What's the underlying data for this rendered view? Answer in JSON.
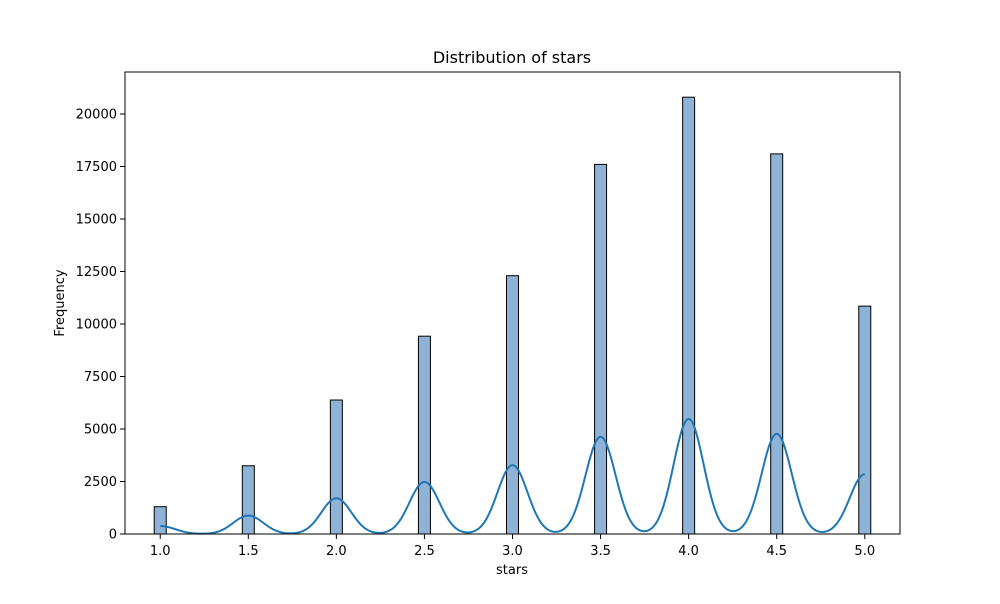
{
  "chart_data": {
    "type": "bar",
    "title": "Distribution of stars",
    "xlabel": "stars",
    "ylabel": "Frequency",
    "xlim": [
      0.8,
      5.2
    ],
    "ylim": [
      0,
      22000
    ],
    "x_ticks": [
      1.0,
      1.5,
      2.0,
      2.5,
      3.0,
      3.5,
      4.0,
      4.5,
      5.0
    ],
    "x_tick_labels": [
      "1.0",
      "1.5",
      "2.0",
      "2.5",
      "3.0",
      "3.5",
      "4.0",
      "4.5",
      "5.0"
    ],
    "y_ticks": [
      0,
      2500,
      5000,
      7500,
      10000,
      12500,
      15000,
      17500,
      20000
    ],
    "y_tick_labels": [
      "0",
      "2500",
      "5000",
      "7500",
      "10000",
      "12500",
      "15000",
      "17500",
      "20000"
    ],
    "grid": false,
    "legend": "none",
    "bar_color": "#8fb3d6",
    "bar_edge_color": "#000000",
    "kde_color": "#1f77b4",
    "series": [
      {
        "values": [
          {
            "x": 1.0,
            "y": 1300
          },
          {
            "x": 1.5,
            "y": 3250
          },
          {
            "x": 2.0,
            "y": 6380
          },
          {
            "x": 2.5,
            "y": 9420
          },
          {
            "x": 3.0,
            "y": 12300
          },
          {
            "x": 3.5,
            "y": 17600
          },
          {
            "x": 4.0,
            "y": 20800
          },
          {
            "x": 4.5,
            "y": 18100
          },
          {
            "x": 5.0,
            "y": 10850
          }
        ]
      }
    ],
    "kde_peaks": [
      {
        "x": 1.0,
        "y": 380
      },
      {
        "x": 1.5,
        "y": 880
      },
      {
        "x": 2.0,
        "y": 1700
      },
      {
        "x": 2.5,
        "y": 2480
      },
      {
        "x": 3.0,
        "y": 3280
      },
      {
        "x": 3.5,
        "y": 4630
      },
      {
        "x": 4.0,
        "y": 5480
      },
      {
        "x": 4.5,
        "y": 4770
      },
      {
        "x": 5.0,
        "y": 2850
      }
    ]
  }
}
